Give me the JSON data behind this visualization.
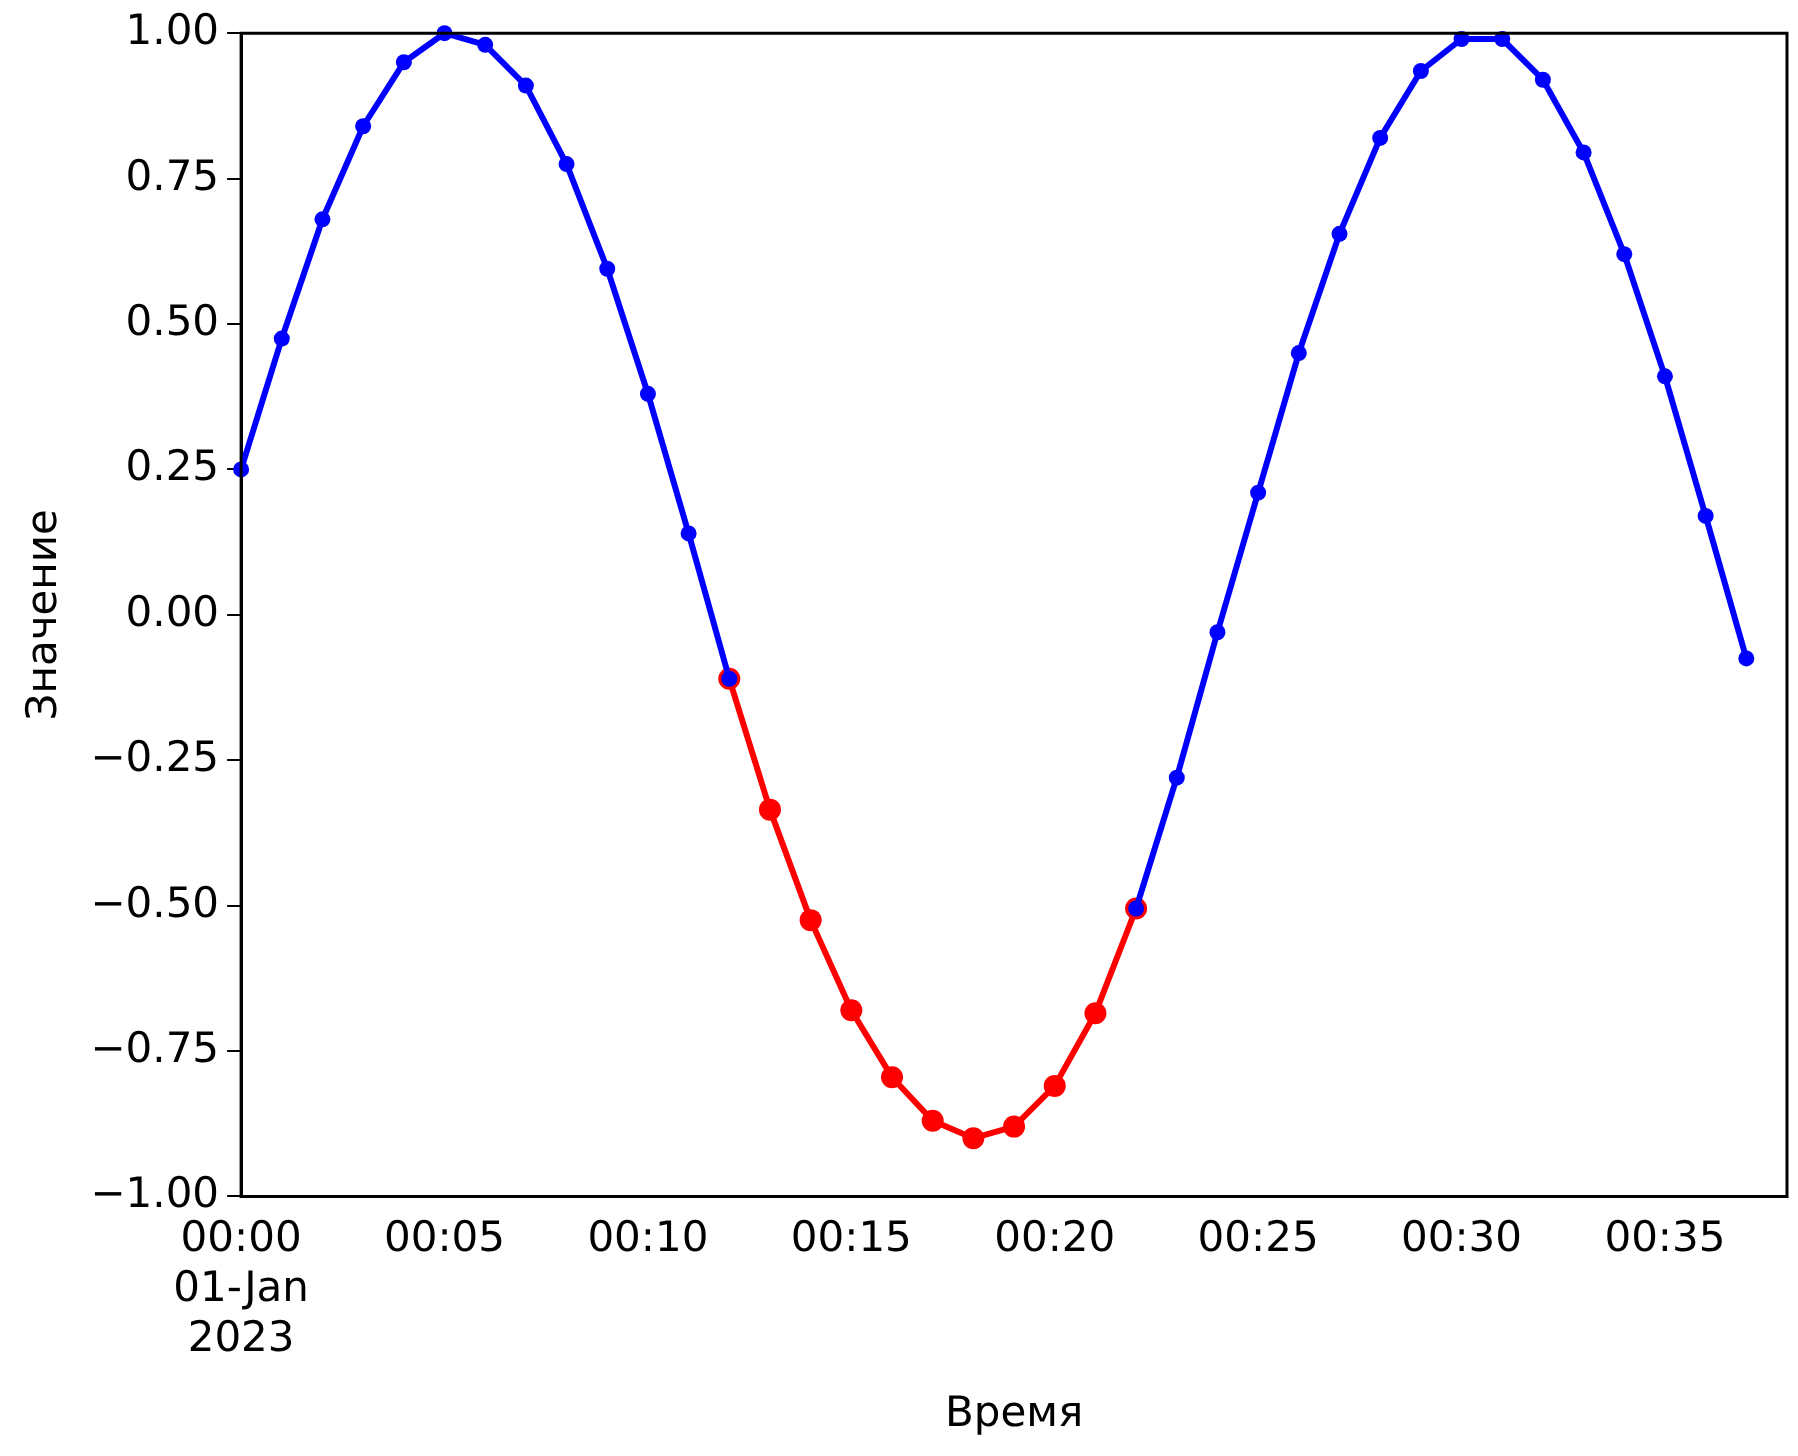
{
  "chart_data": {
    "type": "line",
    "xlabel": "Время",
    "ylabel": "Значение",
    "marker": "circle",
    "line_style": "solid",
    "grid": false,
    "legend": false,
    "xlim": [
      "2023-01-01T00:00",
      "2023-01-01T00:38"
    ],
    "ylim": [
      -1,
      1
    ],
    "xticks": [
      {
        "value": "2023-01-01T00:00",
        "label": "00:00\n01-Jan\n2023"
      },
      {
        "value": "2023-01-01T00:05",
        "label": "00:05"
      },
      {
        "value": "2023-01-01T00:10",
        "label": "00:10"
      },
      {
        "value": "2023-01-01T00:15",
        "label": "00:15"
      },
      {
        "value": "2023-01-01T00:20",
        "label": "00:20"
      },
      {
        "value": "2023-01-01T00:25",
        "label": "00:25"
      },
      {
        "value": "2023-01-01T00:30",
        "label": "00:30"
      },
      {
        "value": "2023-01-01T00:35",
        "label": "00:35"
      }
    ],
    "yticks": [
      {
        "value": -1,
        "label": "−1.00"
      },
      {
        "value": -0.75,
        "label": "−0.75"
      },
      {
        "value": -0.5,
        "label": "−0.50"
      },
      {
        "value": -0.25,
        "label": "−0.25"
      },
      {
        "value": 0,
        "label": "0.00"
      },
      {
        "value": 0.25,
        "label": "0.25"
      },
      {
        "value": 0.5,
        "label": "0.50"
      },
      {
        "value": 0.75,
        "label": "0.75"
      },
      {
        "value": 1,
        "label": "1.00"
      }
    ],
    "series": [
      {
        "color": "#0000ff",
        "x": [
          "2023-01-01T00:00",
          "2023-01-01T00:01",
          "2023-01-01T00:02",
          "2023-01-01T00:03",
          "2023-01-01T00:04",
          "2023-01-01T00:05",
          "2023-01-01T00:06",
          "2023-01-01T00:07",
          "2023-01-01T00:08",
          "2023-01-01T00:09",
          "2023-01-01T00:10",
          "2023-01-01T00:11",
          "2023-01-01T00:12"
        ],
        "values": [
          0.25,
          0.475,
          0.68,
          0.84,
          0.95,
          1.0,
          0.98,
          0.91,
          0.775,
          0.595,
          0.38,
          0.14,
          -0.11
        ]
      },
      {
        "color": "#ff0000",
        "x": [
          "2023-01-01T00:12",
          "2023-01-01T00:13",
          "2023-01-01T00:14",
          "2023-01-01T00:15",
          "2023-01-01T00:16",
          "2023-01-01T00:17",
          "2023-01-01T00:18",
          "2023-01-01T00:19",
          "2023-01-01T00:20",
          "2023-01-01T00:21",
          "2023-01-01T00:22"
        ],
        "values": [
          -0.11,
          -0.335,
          -0.525,
          -0.68,
          -0.795,
          -0.87,
          -0.9,
          -0.88,
          -0.81,
          -0.685,
          -0.505
        ]
      },
      {
        "color": "#0000ff",
        "x": [
          "2023-01-01T00:22",
          "2023-01-01T00:23",
          "2023-01-01T00:24",
          "2023-01-01T00:25",
          "2023-01-01T00:26",
          "2023-01-01T00:27",
          "2023-01-01T00:28",
          "2023-01-01T00:29",
          "2023-01-01T00:30",
          "2023-01-01T00:31",
          "2023-01-01T00:32",
          "2023-01-01T00:33",
          "2023-01-01T00:34",
          "2023-01-01T00:35",
          "2023-01-01T00:36",
          "2023-01-01T00:37"
        ],
        "values": [
          -0.505,
          -0.28,
          -0.03,
          0.21,
          0.45,
          0.655,
          0.82,
          0.935,
          0.99,
          0.99,
          0.92,
          0.795,
          0.62,
          0.41,
          0.17,
          -0.075
        ]
      }
    ]
  }
}
